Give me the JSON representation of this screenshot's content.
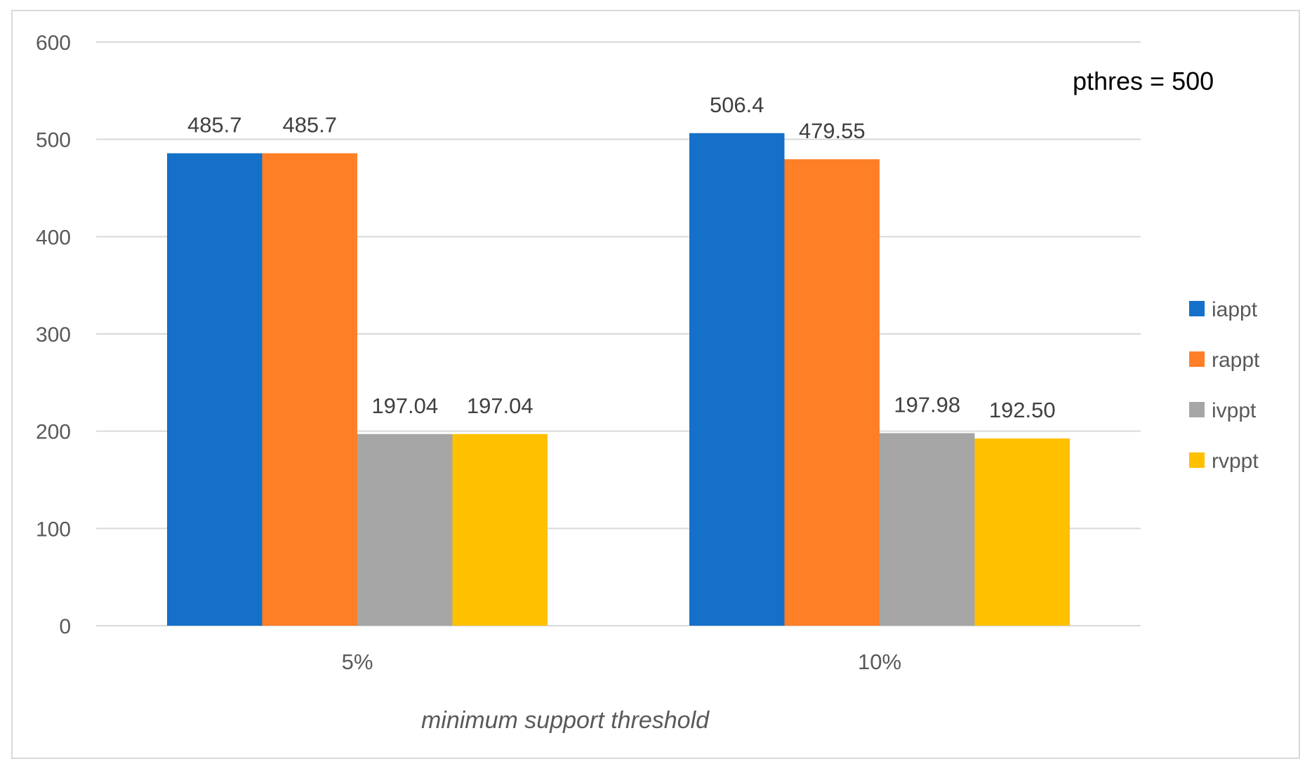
{
  "chart_data": {
    "type": "bar",
    "title": "",
    "xlabel": "minimum support threshold",
    "ylabel": "",
    "ylim": [
      0,
      600
    ],
    "yticks": [
      0,
      100,
      200,
      300,
      400,
      500,
      600
    ],
    "grid": true,
    "legend_position": "right",
    "annotation": "pthres = 500",
    "categories": [
      "5%",
      "10%"
    ],
    "series": [
      {
        "name": "iappt",
        "color": "#1470C8",
        "values": [
          485.7,
          506.4
        ],
        "labels": [
          "485.7",
          "506.4"
        ]
      },
      {
        "name": "rappt",
        "color": "#FF7F27",
        "values": [
          485.7,
          479.55
        ],
        "labels": [
          "485.7",
          "479.55"
        ]
      },
      {
        "name": "ivppt",
        "color": "#A6A6A6",
        "values": [
          197.04,
          197.98
        ],
        "labels": [
          "197.04",
          "197.98"
        ]
      },
      {
        "name": "rvppt",
        "color": "#FFC000",
        "values": [
          197.04,
          192.5
        ],
        "labels": [
          "197.04",
          "192.50"
        ]
      }
    ]
  }
}
